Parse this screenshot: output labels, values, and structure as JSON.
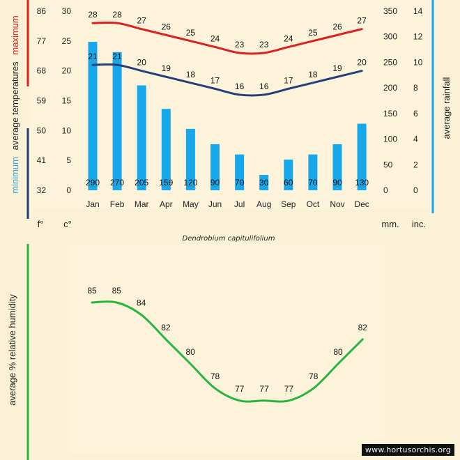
{
  "months": [
    "Jan",
    "Feb",
    "Mar",
    "Apr",
    "May",
    "Jun",
    "Jul",
    "Aug",
    "Sep",
    "Oct",
    "Nov",
    "Dec"
  ],
  "colors": {
    "max": "#dd1f1f",
    "min": "#233f7a",
    "rain": "#16a8ea",
    "humidity": "#27b53c",
    "min_label": "#2ea8e0",
    "panel": "#fdf3db"
  },
  "chart_data": [
    {
      "type": "bar",
      "title": "Dendrobium capitulifolium",
      "categories": [
        "Jan",
        "Feb",
        "Mar",
        "Apr",
        "May",
        "Jun",
        "Jul",
        "Aug",
        "Sep",
        "Oct",
        "Nov",
        "Dec"
      ],
      "series": [
        {
          "name": "maximum",
          "kind": "line",
          "axis": "celsius",
          "values": [
            28,
            28,
            27,
            26,
            25,
            24,
            23,
            23,
            24,
            25,
            26,
            27
          ]
        },
        {
          "name": "minimum",
          "kind": "line",
          "axis": "celsius",
          "values": [
            21,
            21,
            20,
            19,
            18,
            17,
            16,
            16,
            17,
            18,
            19,
            20
          ]
        },
        {
          "name": "average rainfall",
          "kind": "bar",
          "axis": "mm",
          "values": [
            290,
            270,
            205,
            159,
            120,
            90,
            70,
            30,
            60,
            70,
            90,
            130
          ]
        }
      ],
      "axes": {
        "fahrenheit": {
          "unit": "f°",
          "ticks": [
            32,
            41,
            50,
            59,
            68,
            77,
            86
          ]
        },
        "celsius": {
          "unit": "c°",
          "ticks": [
            0,
            5,
            10,
            15,
            20,
            25,
            30
          ],
          "ylim": [
            0,
            30
          ]
        },
        "mm": {
          "unit": "mm.",
          "ticks": [
            0,
            50,
            100,
            150,
            200,
            250,
            300,
            350
          ],
          "ylim": [
            0,
            350
          ]
        },
        "inches": {
          "unit": "inc.",
          "ticks": [
            0,
            2,
            4,
            6,
            8,
            10,
            12,
            14
          ]
        }
      },
      "labels": {
        "left_max": "maximum",
        "left_avg": "average temperatures",
        "left_min": "minimum",
        "right": "average rainfall"
      }
    },
    {
      "type": "line",
      "categories": [
        "Jan",
        "Feb",
        "Mar",
        "Apr",
        "May",
        "Jun",
        "Jul",
        "Aug",
        "Sep",
        "Oct",
        "Nov",
        "Dec"
      ],
      "series": [
        {
          "name": "relative humidity",
          "values": [
            85,
            85,
            84,
            82,
            80,
            78,
            77,
            77,
            77,
            78,
            80,
            82
          ]
        }
      ],
      "ylabel": "average %  relative humidity"
    }
  ],
  "watermark": "www.hortusorchis.org"
}
